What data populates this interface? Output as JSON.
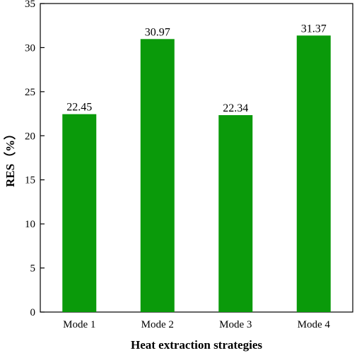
{
  "chart_data": {
    "type": "bar",
    "title": "",
    "xlabel": "Heat extraction strategies",
    "ylabel": "RES（%）",
    "categories": [
      "Mode 1",
      "Mode 2",
      "Mode 3",
      "Mode 4"
    ],
    "values": [
      22.45,
      30.97,
      22.34,
      31.37
    ],
    "value_labels": [
      "22.45",
      "30.97",
      "22.34",
      "31.37"
    ],
    "ylim": [
      0,
      35
    ],
    "yticks": [
      0,
      5,
      10,
      15,
      20,
      25,
      30,
      35
    ],
    "grid": false,
    "legend": "none",
    "bar_color": "#0a9a0a"
  }
}
